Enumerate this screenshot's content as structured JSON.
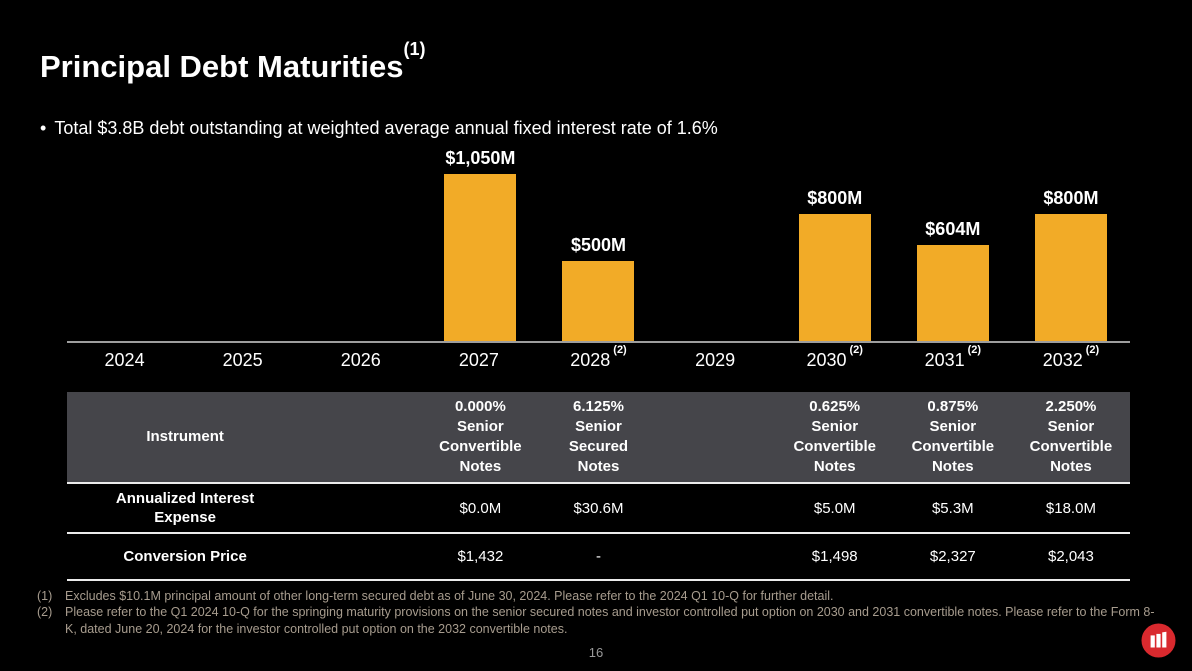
{
  "slide": {
    "title": "Principal Debt Maturities",
    "title_superscript": "(1)",
    "bullet_marker": "•",
    "bullet": "Total $3.8B debt outstanding at weighted average annual fixed interest rate of 1.6%",
    "page_number": "16"
  },
  "colors": {
    "background": "#000000",
    "bar": "#F2AB27",
    "table_header_bg": "#45454A",
    "row_divider": "#EBEBEB",
    "axis_line": "#9E9E9E",
    "footnote_text": "#A79C8E",
    "logo_red": "#D9292E"
  },
  "chart_data": {
    "type": "bar",
    "title": "",
    "xlabel": "",
    "ylabel": "",
    "unit": "$M",
    "ylim": [
      0,
      1100
    ],
    "grid": false,
    "legend": "none",
    "categories": [
      "2024",
      "2025",
      "2026",
      "2027",
      "2028",
      "2029",
      "2030",
      "2031",
      "2032"
    ],
    "category_superscripts": [
      "",
      "",
      "",
      "",
      "(2)",
      "",
      "(2)",
      "(2)",
      "(2)"
    ],
    "values": [
      0,
      0,
      0,
      1050,
      500,
      0,
      800,
      604,
      800
    ],
    "bar_labels": [
      "",
      "",
      "",
      "$1,050M",
      "$500M",
      "",
      "$800M",
      "$604M",
      "$800M"
    ]
  },
  "table": {
    "header": {
      "label": "Instrument",
      "cells": [
        "0.000%\nSenior\nConvertible\nNotes",
        "6.125%\nSenior\nSecured\nNotes",
        "0.625%\nSenior\nConvertible\nNotes",
        "0.875%\nSenior\nConvertible\nNotes",
        "2.250%\nSenior\nConvertible\nNotes"
      ]
    },
    "rows": [
      {
        "label": "Annualized Interest\nExpense",
        "cells": [
          "$0.0M",
          "$30.6M",
          "$5.0M",
          "$5.3M",
          "$18.0M"
        ]
      },
      {
        "label": "Conversion Price",
        "cells": [
          "$1,432",
          "-",
          "$1,498",
          "$2,327",
          "$2,043"
        ]
      }
    ]
  },
  "footnotes": [
    {
      "marker": "(1)",
      "text": "Excludes $10.1M principal amount of other long-term secured debt as of June 30, 2024. Please refer to the 2024 Q1 10-Q for further detail."
    },
    {
      "marker": "(2)",
      "text": "Please refer to the Q1 2024 10-Q for the springing maturity provisions on the senior secured notes and investor controlled put option on 2030 and 2031 convertible notes. Please refer to the Form 8-K, dated June 20, 2024 for the investor controlled put option on the 2032 convertible notes."
    }
  ]
}
